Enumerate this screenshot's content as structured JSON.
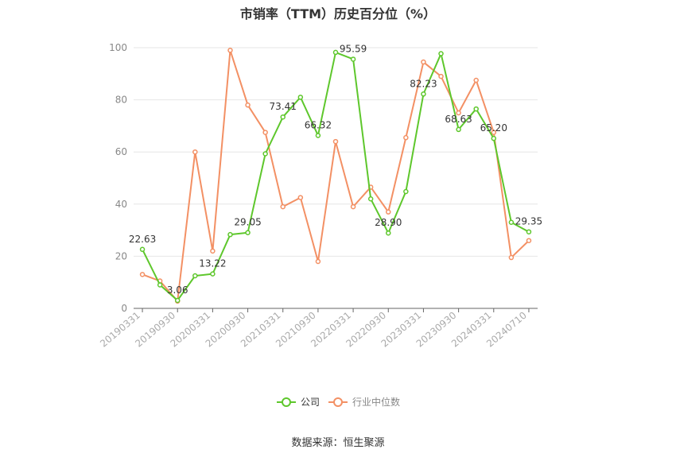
{
  "chart_data": {
    "type": "line",
    "title": "市销率（TTM）历史百分位（%）",
    "ylim": [
      0,
      100
    ],
    "yticks": [
      0,
      20,
      40,
      60,
      80,
      100
    ],
    "x": [
      "20190331",
      "20190630",
      "20190930",
      "20191231",
      "20200331",
      "20200630",
      "20200930",
      "20201231",
      "20210331",
      "20210630",
      "20210930",
      "20211231",
      "20220331",
      "20220630",
      "20220930",
      "20221231",
      "20230331",
      "20230630",
      "20230930",
      "20231231",
      "20240331",
      "20240630",
      "20240710"
    ],
    "xtick_labels": [
      "20190331",
      "20190930",
      "20200331",
      "20200930",
      "20210331",
      "20210930",
      "20220331",
      "20220930",
      "20230331",
      "20230930",
      "20240331",
      "20240710"
    ],
    "series": [
      {
        "name": "公司",
        "color": "#5ec72c",
        "values": [
          22.63,
          9.0,
          3.06,
          12.5,
          13.22,
          28.3,
          29.05,
          59.3,
          73.41,
          81.0,
          66.32,
          98.2,
          95.59,
          42.0,
          28.9,
          44.8,
          82.23,
          97.7,
          68.63,
          76.5,
          65.2,
          33.0,
          29.35
        ]
      },
      {
        "name": "行业中位数",
        "color": "#f39064",
        "values": [
          13.0,
          10.5,
          2.8,
          60.0,
          22.0,
          99.0,
          78.0,
          67.5,
          39.0,
          42.5,
          18.0,
          64.0,
          39.0,
          46.5,
          37.0,
          65.5,
          94.5,
          89.0,
          75.0,
          87.5,
          67.5,
          19.5,
          26.0
        ]
      }
    ],
    "data_labels": [
      {
        "index": 0,
        "text": "22.63"
      },
      {
        "index": 2,
        "text": "3.06"
      },
      {
        "index": 4,
        "text": "13.22"
      },
      {
        "index": 6,
        "text": "29.05"
      },
      {
        "index": 8,
        "text": "73.41"
      },
      {
        "index": 10,
        "text": "66.32"
      },
      {
        "index": 12,
        "text": "95.59"
      },
      {
        "index": 14,
        "text": "28.90"
      },
      {
        "index": 16,
        "text": "82.23"
      },
      {
        "index": 18,
        "text": "68.63"
      },
      {
        "index": 20,
        "text": "65.20"
      },
      {
        "index": 22,
        "text": "29.35"
      }
    ],
    "legend_position": "bottom",
    "grid": true
  },
  "source": "数据来源：恒生聚源"
}
